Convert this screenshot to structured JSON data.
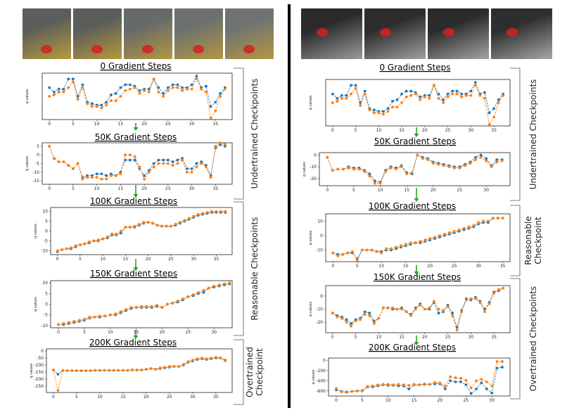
{
  "colors": {
    "series_a": "#1f77b4",
    "series_b": "#ff7f0e",
    "arrow": "#2ca02c",
    "bracket": "#555555"
  },
  "left_frames": [
    {
      "icon": "robot-frame-kitchen-drawer",
      "top": "#5b5e5a",
      "bottom": "#b89a3e"
    },
    {
      "icon": "robot-frame-kitchen-drawer",
      "top": "#5a5d59",
      "bottom": "#b5983f"
    },
    {
      "icon": "robot-frame-kitchen-drawer",
      "top": "#666a68",
      "bottom": "#b49640"
    },
    {
      "icon": "robot-frame-kitchen-drawer",
      "top": "#6c706f",
      "bottom": "#b39742"
    },
    {
      "icon": "robot-frame-kitchen-drawer",
      "top": "#6f7371",
      "bottom": "#b39843"
    }
  ],
  "right_frames": [
    {
      "icon": "robot-frame-red-pot-sink",
      "top": "#2a2a2a",
      "bottom": "#9a9a9a"
    },
    {
      "icon": "robot-frame-red-pot-sink",
      "top": "#2c2c2c",
      "bottom": "#a0a0a0"
    },
    {
      "icon": "robot-frame-red-pot-sink",
      "top": "#2b2b2b",
      "bottom": "#a4a4a4"
    },
    {
      "icon": "robot-frame-red-pot-sink",
      "top": "#2e2e2e",
      "bottom": "#a6a6a6"
    }
  ],
  "brackets": {
    "left": [
      "Undertrained Checkpoints",
      "Reasonable Checkpoints",
      "Overtrained Checkpoint"
    ],
    "right": [
      "Undertrained Checkpoints",
      "Reasonable Checkpoint",
      "Overtrained Checkpoints"
    ]
  },
  "chart_data": [
    {
      "type": "line",
      "panel": "left",
      "title": "0 Gradient Steps",
      "ylabel": "q values",
      "xlim": [
        -1.5,
        38.5
      ],
      "ylim": [
        -14,
        2
      ],
      "xticks": [
        0,
        5,
        10,
        15,
        20,
        25,
        30,
        35
      ],
      "yticks": [],
      "series": [
        {
          "values": [
            -3,
            -4.5,
            -3.5,
            -3.5,
            0,
            0,
            -6,
            -2,
            -8,
            -8.5,
            -9,
            -9,
            -8,
            -5.5,
            -5,
            -3,
            -2,
            -2,
            -2.5,
            -4,
            -3.5,
            -3.5,
            0,
            -3,
            -5,
            -3,
            -2,
            -2,
            -3,
            -3,
            -2,
            1,
            -3,
            -2.5,
            -9.5,
            -8,
            -5,
            -3
          ]
        },
        {
          "values": [
            -6,
            -5.5,
            -4.5,
            -4.5,
            -3,
            -1,
            -7,
            -3,
            -8.5,
            -9.5,
            -9.5,
            -10,
            -9,
            -7.5,
            -7.5,
            -6,
            -4,
            -3.5,
            -3,
            -5,
            -4,
            -4.5,
            0,
            -4.5,
            -6,
            -4,
            -3,
            -3,
            -4,
            -3.5,
            -3.5,
            0,
            -3.5,
            -4.5,
            -13.5,
            -11,
            -6,
            -3.5
          ]
        }
      ]
    },
    {
      "type": "line",
      "panel": "left",
      "title": "50K Gradient Steps",
      "ylabel": "q values",
      "xlim": [
        -1.5,
        38.5
      ],
      "ylim": [
        -17,
        7
      ],
      "xticks": [
        0,
        5,
        10,
        15,
        20,
        25,
        30,
        35
      ],
      "yticks": [
        5,
        0,
        -5,
        -10,
        -15
      ],
      "series": [
        {
          "values": [
            5,
            -2,
            -4,
            -4,
            -6,
            -8,
            -5,
            -13,
            -12,
            -12,
            -11,
            -11,
            -12,
            -11,
            -12,
            -10,
            -3,
            -3,
            -3,
            -8,
            -12,
            -9,
            -5,
            -3,
            -3,
            -3,
            -4,
            -3,
            -2,
            -8,
            -8,
            -5,
            -4,
            -6,
            -12,
            4,
            6,
            5
          ]
        },
        {
          "values": [
            5,
            -2,
            -4,
            -4,
            -6,
            -8,
            -5,
            -14,
            -13,
            -13,
            -13,
            -14,
            -14,
            -12,
            -12,
            -11,
            0,
            0,
            -1,
            -7,
            -14,
            -10,
            -7,
            -5,
            -5,
            -5,
            -6,
            -5,
            -3,
            -10,
            -10,
            -7,
            -5,
            -7,
            -13,
            5,
            7,
            6
          ]
        }
      ]
    },
    {
      "type": "line",
      "panel": "left",
      "title": "100K Gradient Steps",
      "ylabel": "q values",
      "xlim": [
        -1.5,
        38.5
      ],
      "ylim": [
        -12,
        12
      ],
      "xticks": [
        0,
        5,
        10,
        15,
        20,
        25,
        30,
        35
      ],
      "yticks": [
        10,
        5,
        0,
        -5,
        -10
      ],
      "series": [
        {
          "values": [
            -10.5,
            -9.5,
            -9,
            -9,
            -8,
            -7,
            -6.5,
            -6,
            -5,
            -5,
            -4,
            -3.5,
            -2,
            -2,
            -1,
            2,
            2,
            2,
            3,
            4,
            4.5,
            4,
            3,
            2.5,
            2.5,
            2.5,
            3,
            4,
            5,
            6,
            7,
            8,
            8.5,
            9,
            9.5,
            9.5,
            9.5,
            9.5
          ]
        },
        {
          "values": [
            -10,
            -9.5,
            -9,
            -8.5,
            -7.5,
            -7,
            -6.5,
            -5.5,
            -5,
            -4.5,
            -4,
            -3,
            -1.5,
            -1.5,
            0,
            2,
            2,
            2.5,
            3.5,
            4.5,
            4.5,
            4,
            3,
            2.5,
            2.5,
            2.5,
            3.5,
            4.5,
            5.5,
            6.5,
            7.5,
            8.5,
            9,
            9.5,
            10,
            10,
            10,
            10
          ]
        }
      ]
    },
    {
      "type": "line",
      "panel": "left",
      "title": "150K Gradient Steps",
      "ylabel": "q values",
      "xlim": [
        -1.5,
        33.5
      ],
      "ylim": [
        -11,
        11
      ],
      "xticks": [
        0,
        5,
        10,
        15,
        20,
        25,
        30
      ],
      "yticks": [
        10,
        5,
        0,
        -5,
        -10
      ],
      "series": [
        {
          "values": [
            -9.5,
            -9.5,
            -9,
            -8.5,
            -8,
            -7.5,
            -6.5,
            -6,
            -6,
            -5.5,
            -5,
            -5,
            -4,
            -3,
            -2,
            -1.5,
            -1.5,
            -1.5,
            -1.5,
            -1,
            -1.5,
            0,
            0.5,
            1,
            2,
            3.5,
            4,
            5,
            5.5,
            7.5,
            8,
            8.5,
            9,
            9.5
          ]
        },
        {
          "values": [
            -9.5,
            -9,
            -8.5,
            -8,
            -7.5,
            -7,
            -6,
            -6,
            -5.5,
            -5.5,
            -5,
            -4.5,
            -3.5,
            -2.5,
            -1.5,
            -1.5,
            -1,
            -1,
            -1,
            -0.5,
            -1.5,
            0,
            0.5,
            1.5,
            2.5,
            3.5,
            4.5,
            5.5,
            6.5,
            7.5,
            8.5,
            9,
            9.5,
            10
          ]
        }
      ]
    },
    {
      "type": "line",
      "panel": "left",
      "title": "200K Gradient Steps",
      "ylabel": "q values",
      "xlim": [
        -1.5,
        38.5
      ],
      "ylim": [
        -295,
        15
      ],
      "xticks": [
        0,
        5,
        10,
        15,
        20,
        25,
        30,
        35
      ],
      "yticks": [
        0,
        -50,
        -100,
        -150,
        -200,
        -250
      ],
      "series": [
        {
          "values": [
            -135,
            -165,
            -140,
            -140,
            -140,
            -140,
            -140,
            -140,
            -140,
            -138,
            -138,
            -138,
            -138,
            -138,
            -138,
            -138,
            -138,
            -135,
            -135,
            -135,
            -130,
            -125,
            -130,
            -125,
            -120,
            -115,
            -110,
            -110,
            -100,
            -80,
            -70,
            -60,
            -55,
            -60,
            -55,
            -50,
            -50,
            -65
          ]
        },
        {
          "values": [
            -135,
            -280,
            -140,
            -140,
            -140,
            -140,
            -140,
            -140,
            -140,
            -138,
            -138,
            -138,
            -138,
            -138,
            -138,
            -138,
            -138,
            -135,
            -135,
            -135,
            -130,
            -125,
            -130,
            -120,
            -115,
            -110,
            -110,
            -110,
            -95,
            -75,
            -65,
            -55,
            -50,
            -55,
            -50,
            -45,
            -50,
            -70
          ]
        }
      ]
    },
    {
      "type": "line",
      "panel": "right",
      "title": "0 Gradient Steps",
      "ylabel": "q values",
      "xlim": [
        -1.5,
        38.5
      ],
      "ylim": [
        -14,
        2
      ],
      "xticks": [
        0,
        5,
        10,
        15,
        20,
        25,
        30,
        35
      ],
      "yticks": [],
      "series": [
        {
          "values": [
            -3,
            -4.5,
            -3.5,
            -3.5,
            0,
            0,
            -6,
            -2,
            -8,
            -8.5,
            -9,
            -9,
            -8,
            -5.5,
            -5,
            -3,
            -2,
            -2,
            -2.5,
            -4,
            -3.5,
            -3.5,
            0,
            -3,
            -5,
            -3,
            -2,
            -2,
            -3,
            -3,
            -2,
            1,
            -3,
            -2.5,
            -9.5,
            -8,
            -5,
            -3
          ]
        },
        {
          "values": [
            -6,
            -5.5,
            -4.5,
            -4.5,
            -3,
            -1,
            -7,
            -3,
            -8.5,
            -9.5,
            -9.5,
            -10,
            -9,
            -7.5,
            -7.5,
            -6,
            -4,
            -3.5,
            -3,
            -5,
            -4,
            -4.5,
            0,
            -4.5,
            -6,
            -4,
            -3,
            -3,
            -4,
            -3.5,
            -3.5,
            0,
            -3.5,
            -4.5,
            -13.5,
            -11,
            -6,
            -3.5
          ]
        }
      ]
    },
    {
      "type": "line",
      "panel": "right",
      "title": "50K Gradient Steps",
      "ylabel": "q values",
      "xlim": [
        -1.5,
        34.5
      ],
      "ylim": [
        -26,
        2
      ],
      "xticks": [
        0,
        5,
        10,
        15,
        20,
        25,
        30
      ],
      "yticks": [
        0,
        -10,
        -20
      ],
      "series": [
        {
          "values": [
            -2,
            -13,
            -12,
            -12,
            -10,
            -11,
            -11,
            -13,
            -16,
            -22,
            -23,
            -13,
            -10,
            -11,
            -9,
            -15,
            -16,
            0,
            -2,
            -3,
            -6,
            -7,
            -8,
            -9,
            -10,
            -10,
            -8,
            -6,
            -2,
            0,
            -3,
            -9,
            -4,
            -4
          ]
        },
        {
          "values": [
            -2,
            -13,
            -12,
            -12,
            -11,
            -12,
            -12,
            -14,
            -18,
            -24,
            -24,
            -14,
            -11,
            -12,
            -10,
            -16,
            -15,
            0,
            -3,
            -4,
            -7,
            -8,
            -9,
            -10,
            -11,
            -11,
            -9,
            -7,
            -4,
            -2,
            -5,
            -10,
            -6,
            -5
          ]
        }
      ]
    },
    {
      "type": "line",
      "panel": "right",
      "title": "100K Gradient Steps",
      "ylabel": "q values",
      "xlim": [
        -1.5,
        36.5
      ],
      "ylim": [
        -18,
        15
      ],
      "xticks": [
        0,
        5,
        10,
        15,
        20,
        25,
        30,
        35
      ],
      "yticks": [
        10,
        0,
        -10
      ],
      "series": [
        {
          "values": [
            -12,
            -13,
            -13,
            -12,
            -12,
            -16,
            -10,
            -10,
            -10,
            -11,
            -11,
            -10,
            -10,
            -9,
            -8,
            -7,
            -6,
            -5,
            -5,
            -4,
            -3,
            -2,
            -1,
            0,
            1,
            2,
            3,
            4,
            5,
            6,
            8,
            9,
            9,
            12,
            12,
            12
          ]
        },
        {
          "values": [
            -12,
            -14,
            -13,
            -12,
            -11,
            -17,
            -10,
            -10,
            -10,
            -11,
            -12,
            -9,
            -9,
            -8,
            -7,
            -6,
            -5,
            -5,
            -4,
            -3,
            -2,
            -1,
            0,
            1,
            2,
            3,
            4,
            5,
            6,
            7,
            9,
            10,
            10,
            12,
            12,
            12
          ]
        }
      ]
    },
    {
      "type": "line",
      "panel": "right",
      "title": "150K Gradient Steps",
      "ylabel": "q values",
      "xlim": [
        -1.5,
        38.5
      ],
      "ylim": [
        -28,
        8
      ],
      "xticks": [
        0,
        5,
        10,
        15,
        20,
        25,
        30,
        35
      ],
      "yticks": [
        0,
        -10,
        -20
      ],
      "series": [
        {
          "values": [
            -13,
            -15,
            -16,
            -18,
            -21,
            -18,
            -17,
            -12,
            -13,
            -19,
            -17,
            -9,
            -9,
            -10,
            -10,
            -9,
            -12,
            -14,
            -9,
            -6,
            -10,
            -10,
            -5,
            -13,
            -12,
            -7,
            -13,
            -24,
            -11,
            -2,
            -3,
            -1,
            -4,
            -10,
            -5,
            3,
            4,
            6
          ]
        },
        {
          "values": [
            -13,
            -16,
            -17,
            -20,
            -23,
            -19,
            -18,
            -14,
            -15,
            -21,
            -17,
            -9,
            -9,
            -9,
            -10,
            -10,
            -12,
            -15,
            -10,
            -7,
            -10,
            -9,
            -4,
            -10,
            -11,
            -8,
            -15,
            -26,
            -12,
            -3,
            -2,
            -2,
            -5,
            -12,
            -6,
            2,
            5,
            6
          ]
        }
      ]
    },
    {
      "type": "line",
      "panel": "right",
      "title": "200K Gradient Steps",
      "ylabel": "q values",
      "xlim": [
        -1.5,
        33.5
      ],
      "ylim": [
        -700,
        50
      ],
      "xticks": [
        0,
        5,
        10,
        15,
        20,
        25,
        30
      ],
      "yticks": [
        0,
        -200,
        -400,
        -600
      ],
      "series": [
        {
          "values": [
            -580,
            -610,
            -620,
            -610,
            -600,
            -600,
            -520,
            -520,
            -500,
            -480,
            -490,
            -490,
            -500,
            -500,
            -560,
            -480,
            -480,
            -470,
            -470,
            -460,
            -460,
            -560,
            -400,
            -420,
            -420,
            -480,
            -650,
            -560,
            -440,
            -560,
            -640,
            -150,
            -130
          ]
        },
        {
          "values": [
            -550,
            -620,
            -630,
            -610,
            -600,
            -590,
            -510,
            -500,
            -480,
            -470,
            -470,
            -480,
            -470,
            -480,
            -490,
            -470,
            -480,
            -460,
            -470,
            -430,
            -440,
            -500,
            -320,
            -340,
            -350,
            -390,
            -540,
            -400,
            -370,
            -420,
            -500,
            -20,
            -20
          ]
        }
      ]
    }
  ]
}
